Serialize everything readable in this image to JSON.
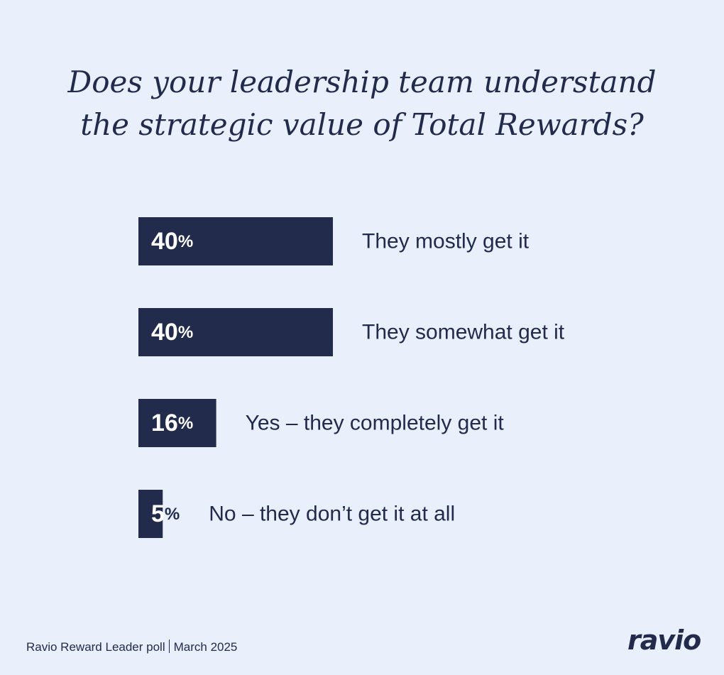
{
  "chart_data": {
    "type": "bar",
    "orientation": "horizontal",
    "title_lines": [
      "Does your leadership team understand",
      "the strategic value of Total Rewards?"
    ],
    "categories": [
      "They mostly get it",
      "They somewhat get it",
      "Yes – they completely get it",
      "No – they don’t get it at all"
    ],
    "values": [
      40,
      40,
      16,
      5
    ],
    "value_labels": [
      "40",
      "40",
      "16",
      "5"
    ],
    "value_unit": "%",
    "xlim": [
      0,
      40
    ],
    "grid": false,
    "legend": "none",
    "bar_color": "#232b4d",
    "label_color_inside": "#ffffff",
    "label_color_outside": "#232b4d"
  },
  "footer": {
    "source": "Ravio Reward Leader poll",
    "date": "March 2025"
  },
  "brand": {
    "logo_text": "ravio"
  },
  "colors": {
    "background": "#e9f0fb",
    "text": "#232b4d"
  }
}
